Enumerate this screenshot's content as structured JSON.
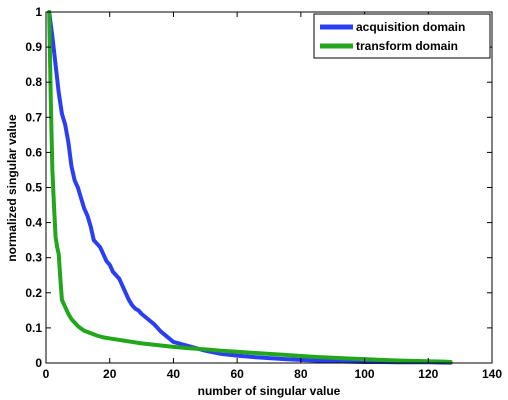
{
  "chart_data": {
    "type": "line",
    "title": "",
    "xlabel": "number of singular value",
    "ylabel": "normalized singular value",
    "xlim": [
      0,
      140
    ],
    "ylim": [
      0,
      1
    ],
    "xticks": [
      0,
      20,
      40,
      60,
      80,
      100,
      120,
      140
    ],
    "yticks": [
      0,
      0.1,
      0.2,
      0.3,
      0.4,
      0.5,
      0.6,
      0.7,
      0.8,
      0.9,
      1
    ],
    "xtick_labels": [
      "0",
      "20",
      "40",
      "60",
      "80",
      "100",
      "120",
      "140"
    ],
    "ytick_labels": [
      "0",
      "0.1",
      "0.2",
      "0.3",
      "0.4",
      "0.5",
      "0.6",
      "0.7",
      "0.8",
      "0.9",
      "1"
    ],
    "grid": false,
    "legend_position": "top-right",
    "series": [
      {
        "name": "acquisition domain",
        "color": "#2b3ff2",
        "x": [
          1,
          2,
          3,
          4,
          5,
          6,
          7,
          8,
          9,
          10,
          11,
          12,
          13,
          14,
          15,
          16,
          17,
          18,
          19,
          20,
          21,
          22,
          23,
          24,
          25,
          26,
          27,
          28,
          29,
          30,
          32,
          34,
          36,
          38,
          40,
          42,
          44,
          46,
          48,
          50,
          55,
          60,
          65,
          70,
          75,
          80,
          85,
          90,
          95,
          100,
          105,
          110,
          115,
          120,
          125,
          127
        ],
        "y": [
          1.0,
          0.93,
          0.85,
          0.77,
          0.71,
          0.68,
          0.63,
          0.56,
          0.52,
          0.5,
          0.47,
          0.44,
          0.42,
          0.39,
          0.35,
          0.34,
          0.33,
          0.31,
          0.29,
          0.28,
          0.26,
          0.25,
          0.24,
          0.22,
          0.2,
          0.18,
          0.165,
          0.155,
          0.15,
          0.14,
          0.125,
          0.11,
          0.09,
          0.075,
          0.06,
          0.055,
          0.05,
          0.045,
          0.04,
          0.035,
          0.026,
          0.021,
          0.017,
          0.014,
          0.011,
          0.009,
          0.007,
          0.005,
          0.004,
          0.003,
          0.003,
          0.002,
          0.002,
          0.002,
          0.001,
          0.001
        ]
      },
      {
        "name": "transform domain",
        "color": "#22a61c",
        "x": [
          1,
          1.5,
          2,
          2.5,
          3,
          3.5,
          4,
          4.5,
          5,
          6,
          7,
          8,
          9,
          10,
          11,
          12,
          14,
          16,
          18,
          20,
          25,
          30,
          35,
          40,
          45,
          50,
          55,
          60,
          65,
          70,
          75,
          80,
          85,
          90,
          95,
          100,
          105,
          110,
          115,
          120,
          125,
          127
        ],
        "y": [
          1.0,
          0.75,
          0.55,
          0.45,
          0.36,
          0.33,
          0.31,
          0.24,
          0.18,
          0.16,
          0.14,
          0.125,
          0.115,
          0.105,
          0.098,
          0.092,
          0.085,
          0.078,
          0.073,
          0.07,
          0.063,
          0.056,
          0.051,
          0.046,
          0.042,
          0.039,
          0.035,
          0.032,
          0.029,
          0.026,
          0.023,
          0.02,
          0.017,
          0.015,
          0.013,
          0.011,
          0.009,
          0.007,
          0.006,
          0.005,
          0.004,
          0.003
        ]
      }
    ]
  }
}
